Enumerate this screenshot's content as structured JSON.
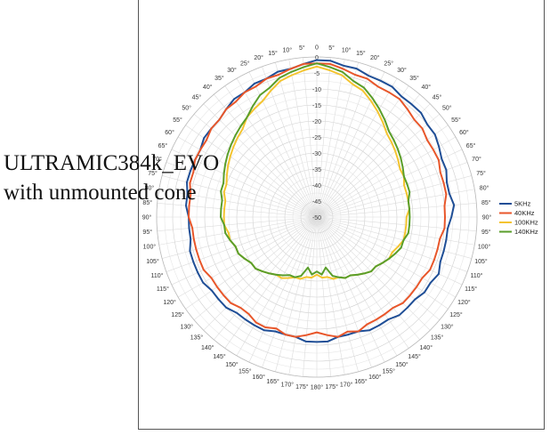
{
  "title_overlay": {
    "line1": "ULTRAMIC384k_EVO",
    "line2": "with unmounted cone"
  },
  "chart_data": {
    "type": "line",
    "subtype": "polar",
    "angle_step_deg": 5,
    "angle_tick_labels": [
      "0",
      "5°",
      "10°",
      "15°",
      "20°",
      "25°",
      "30°",
      "35°",
      "40°",
      "45°",
      "50°",
      "55°",
      "60°",
      "65°",
      "70°",
      "75°",
      "80°",
      "85°",
      "90°",
      "95°",
      "100°",
      "105°",
      "110°",
      "115°",
      "120°",
      "125°",
      "130°",
      "135°",
      "140°",
      "145°",
      "150°",
      "155°",
      "160°",
      "165°",
      "170°",
      "175°",
      "180°",
      "175°",
      "170°",
      "165°",
      "160°",
      "155°",
      "150°",
      "145°",
      "140°",
      "135°",
      "130°",
      "125°",
      "120°",
      "115°",
      "110°",
      "105°",
      "100°",
      "95°",
      "90°",
      "85°",
      "80°",
      "75°",
      "70°",
      "65°",
      "60°",
      "55°",
      "50°",
      "45°",
      "40°",
      "35°",
      "30°",
      "25°",
      "20°",
      "15°",
      "10°",
      "5°"
    ],
    "r_range": [
      -50,
      0
    ],
    "r_ticks": [
      0,
      -5,
      -10,
      -15,
      -20,
      -25,
      -30,
      -35,
      -40,
      -45,
      -50
    ],
    "r_unit": "",
    "grid": true,
    "legend_position": "right",
    "series": [
      {
        "name": "5KHz",
        "color": "#1f4e96",
        "values": [
          -1,
          -1,
          -2,
          -2,
          -3,
          -3,
          -3,
          -4,
          -4,
          -4,
          -5,
          -5,
          -6,
          -7,
          -7,
          -8,
          -8,
          -7,
          -8,
          -9,
          -9,
          -9,
          -9,
          -8,
          -9,
          -9,
          -10,
          -10,
          -10,
          -11,
          -11,
          -11,
          -12,
          -12,
          -12,
          -11,
          -11,
          -11,
          -12,
          -12,
          -12,
          -11,
          -11,
          -11,
          -11,
          -10,
          -10,
          -10,
          -9,
          -9,
          -9,
          -9,
          -10,
          -10,
          -10,
          -9,
          -9,
          -8,
          -8,
          -8,
          -8,
          -7,
          -7,
          -7,
          -6,
          -5,
          -5,
          -4,
          -4,
          -3,
          -3,
          -2
        ]
      },
      {
        "name": "40KHz",
        "color": "#e8562a",
        "values": [
          -2,
          -2,
          -3,
          -4,
          -4,
          -5,
          -5,
          -5,
          -6,
          -7,
          -7,
          -8,
          -8,
          -8,
          -9,
          -9,
          -9,
          -10,
          -10,
          -10,
          -11,
          -11,
          -11,
          -11,
          -12,
          -12,
          -12,
          -12,
          -13,
          -13,
          -13,
          -13,
          -12,
          -13,
          -12,
          -13,
          -14,
          -13,
          -12,
          -12,
          -13,
          -12,
          -12,
          -13,
          -13,
          -12,
          -12,
          -12,
          -12,
          -11,
          -11,
          -11,
          -11,
          -11,
          -10,
          -10,
          -10,
          -9,
          -9,
          -8,
          -8,
          -8,
          -7,
          -7,
          -6,
          -6,
          -5,
          -5,
          -4,
          -4,
          -3,
          -2
        ]
      },
      {
        "name": "100KHz",
        "color": "#f4c430",
        "values": [
          -3,
          -4,
          -5,
          -7,
          -8,
          -10,
          -12,
          -14,
          -16,
          -17,
          -18,
          -19,
          -20,
          -20,
          -21,
          -21,
          -21,
          -21,
          -22,
          -22,
          -22,
          -22,
          -23,
          -24,
          -24,
          -25,
          -26,
          -26,
          -27,
          -28,
          -29,
          -29,
          -30,
          -30,
          -31,
          -31,
          -32,
          -31,
          -31,
          -30,
          -30,
          -29,
          -28,
          -28,
          -27,
          -26,
          -25,
          -25,
          -24,
          -23,
          -23,
          -22,
          -22,
          -21,
          -21,
          -21,
          -21,
          -20,
          -20,
          -19,
          -18,
          -17,
          -16,
          -15,
          -14,
          -12,
          -11,
          -10,
          -8,
          -6,
          -5,
          -4
        ]
      },
      {
        "name": "140KHz",
        "color": "#5a9e2a",
        "values": [
          -2,
          -3,
          -4,
          -6,
          -7,
          -9,
          -11,
          -13,
          -15,
          -16,
          -17,
          -18,
          -19,
          -20,
          -20,
          -20,
          -21,
          -21,
          -21,
          -21,
          -21,
          -22,
          -22,
          -23,
          -24,
          -25,
          -26,
          -26,
          -27,
          -28,
          -29,
          -29,
          -30,
          -31,
          -34,
          -32,
          -33,
          -32,
          -34,
          -31,
          -30,
          -30,
          -29,
          -28,
          -27,
          -26,
          -25,
          -25,
          -24,
          -23,
          -23,
          -22,
          -21,
          -21,
          -20,
          -20,
          -20,
          -19,
          -19,
          -18,
          -17,
          -16,
          -15,
          -14,
          -13,
          -12,
          -10,
          -8,
          -7,
          -5,
          -4,
          -3
        ]
      }
    ]
  }
}
